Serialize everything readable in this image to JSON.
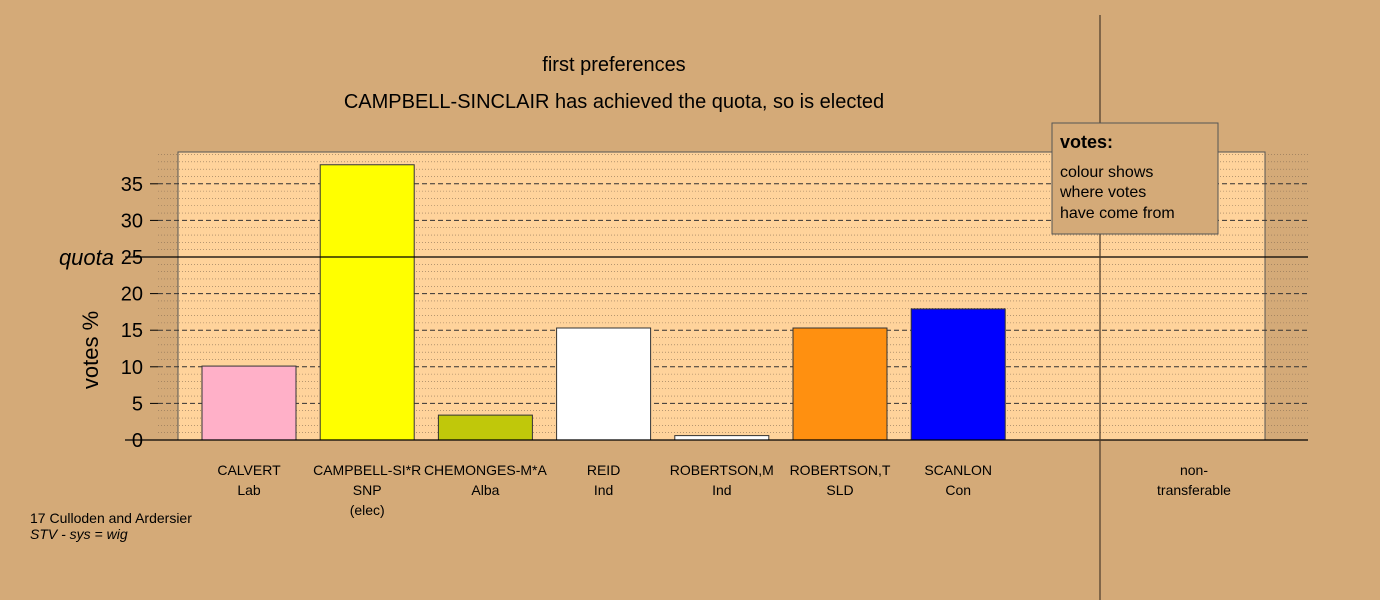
{
  "chart_data": {
    "type": "bar",
    "title": "first preferences",
    "subtitle": "CAMPBELL-SINCLAIR has achieved the quota, so is elected",
    "ylabel": "votes %",
    "quota_label": "quota",
    "quota": 25,
    "ylim": [
      0,
      39
    ],
    "yticks": [
      0,
      5,
      10,
      15,
      20,
      25,
      30,
      35
    ],
    "grid": true,
    "legend": {
      "title": "votes:",
      "lines": [
        "colour shows",
        "where votes",
        "have come from"
      ],
      "placement": "top-right"
    },
    "bars": [
      {
        "name": "CALVERT",
        "party": "Lab",
        "extra": "",
        "value": 10.1,
        "color": "#ffb0c8"
      },
      {
        "name": "CAMPBELL-SI*R",
        "party": "SNP",
        "extra": "(elec)",
        "value": 37.6,
        "color": "#ffff00"
      },
      {
        "name": "CHEMONGES-M*A",
        "party": "Alba",
        "extra": "",
        "value": 3.4,
        "color": "#c0c80a"
      },
      {
        "name": "REID",
        "party": "Ind",
        "extra": "",
        "value": 15.3,
        "color": "#ffffff"
      },
      {
        "name": "ROBERTSON,M",
        "party": "Ind",
        "extra": "",
        "value": 0.6,
        "color": "#ffffff"
      },
      {
        "name": "ROBERTSON,T",
        "party": "SLD",
        "extra": "",
        "value": 15.3,
        "color": "#ff9010"
      },
      {
        "name": "SCANLON",
        "party": "Con",
        "extra": "",
        "value": 17.9,
        "color": "#0000ff"
      }
    ],
    "nontransferable": {
      "label_line1": "non-",
      "label_line2": "transferable",
      "value": 0
    }
  },
  "footer": {
    "ward": "17 Culloden and Ardersier",
    "system": "STV - sys = wig"
  }
}
